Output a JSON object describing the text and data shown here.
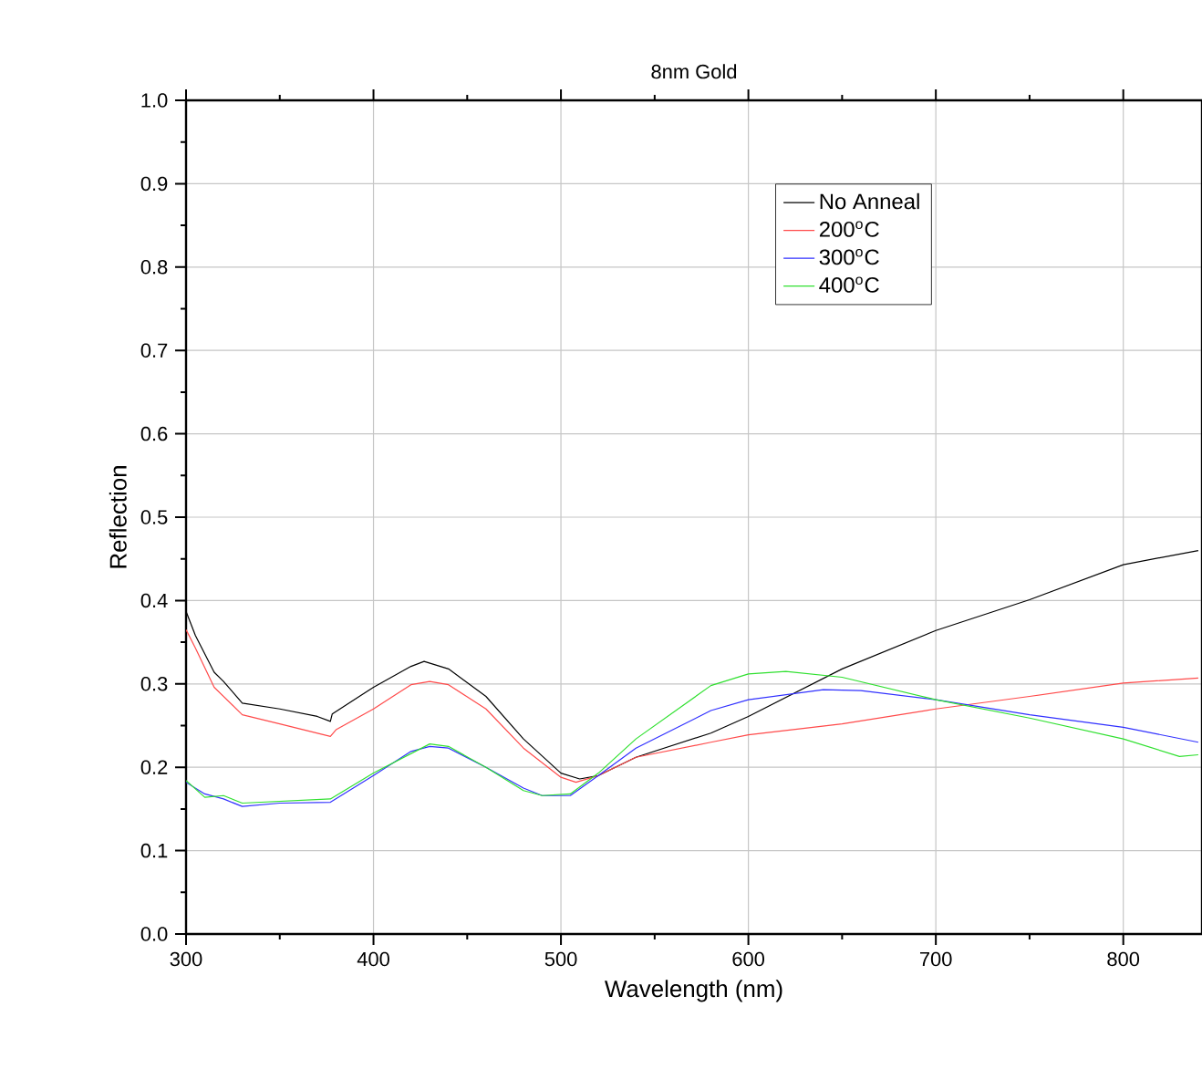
{
  "chart_data": {
    "type": "line",
    "title": "8nm Gold",
    "xlabel": "Wavelength (nm)",
    "ylabel": "Reflection",
    "xlim": [
      300,
      842
    ],
    "ylim": [
      0,
      1
    ],
    "xticks": [
      300,
      400,
      500,
      600,
      700,
      800
    ],
    "yticks": [
      {
        "value": 0,
        "label": "0.0"
      },
      0.1,
      0.2,
      0.3,
      0.4,
      0.5,
      0.6,
      0.7,
      0.8,
      0.9,
      {
        "value": 1,
        "label": "1.0"
      }
    ],
    "grid": true,
    "legend": "top right",
    "marker": "none",
    "line_style": "solid",
    "series": [
      {
        "name": "No Anneal",
        "color": "#000000",
        "x": [
          300,
          305,
          315,
          320,
          330,
          350,
          370,
          377,
          378,
          400,
          420,
          427,
          440,
          460,
          480,
          500,
          510,
          520,
          540,
          580,
          600,
          650,
          700,
          750,
          800,
          840
        ],
        "values": [
          0.387,
          0.358,
          0.314,
          0.303,
          0.277,
          0.27,
          0.261,
          0.255,
          0.264,
          0.296,
          0.321,
          0.327,
          0.318,
          0.285,
          0.234,
          0.193,
          0.186,
          0.19,
          0.212,
          0.241,
          0.261,
          0.318,
          0.364,
          0.401,
          0.443,
          0.46
        ]
      },
      {
        "name": "200$^{o}$C",
        "color": "#ff4a4a",
        "x": [
          300,
          305,
          315,
          330,
          350,
          377,
          380,
          400,
          420,
          430,
          440,
          460,
          480,
          500,
          508,
          520,
          540,
          580,
          600,
          650,
          700,
          750,
          800,
          840
        ],
        "values": [
          0.365,
          0.343,
          0.296,
          0.263,
          0.252,
          0.237,
          0.245,
          0.27,
          0.299,
          0.303,
          0.299,
          0.27,
          0.223,
          0.188,
          0.182,
          0.19,
          0.212,
          0.23,
          0.239,
          0.252,
          0.27,
          0.285,
          0.301,
          0.307
        ]
      },
      {
        "name": "300$^{o}$C",
        "color": "#3030ff",
        "x": [
          300,
          310,
          320,
          330,
          350,
          377,
          400,
          420,
          430,
          440,
          460,
          480,
          490,
          505,
          520,
          540,
          580,
          600,
          640,
          660,
          700,
          750,
          800,
          840
        ],
        "values": [
          0.182,
          0.168,
          0.162,
          0.153,
          0.157,
          0.158,
          0.19,
          0.219,
          0.225,
          0.223,
          0.2,
          0.175,
          0.166,
          0.166,
          0.19,
          0.223,
          0.268,
          0.281,
          0.293,
          0.292,
          0.281,
          0.263,
          0.248,
          0.23
        ]
      },
      {
        "name": "400$^{o}$C",
        "color": "#30e030",
        "x": [
          300,
          310,
          320,
          330,
          377,
          400,
          430,
          440,
          460,
          480,
          490,
          505,
          520,
          540,
          580,
          600,
          620,
          650,
          700,
          750,
          800,
          830,
          840
        ],
        "values": [
          0.184,
          0.164,
          0.166,
          0.157,
          0.162,
          0.193,
          0.228,
          0.225,
          0.2,
          0.172,
          0.166,
          0.168,
          0.193,
          0.234,
          0.298,
          0.312,
          0.315,
          0.308,
          0.281,
          0.259,
          0.234,
          0.213,
          0.215
        ]
      }
    ]
  }
}
